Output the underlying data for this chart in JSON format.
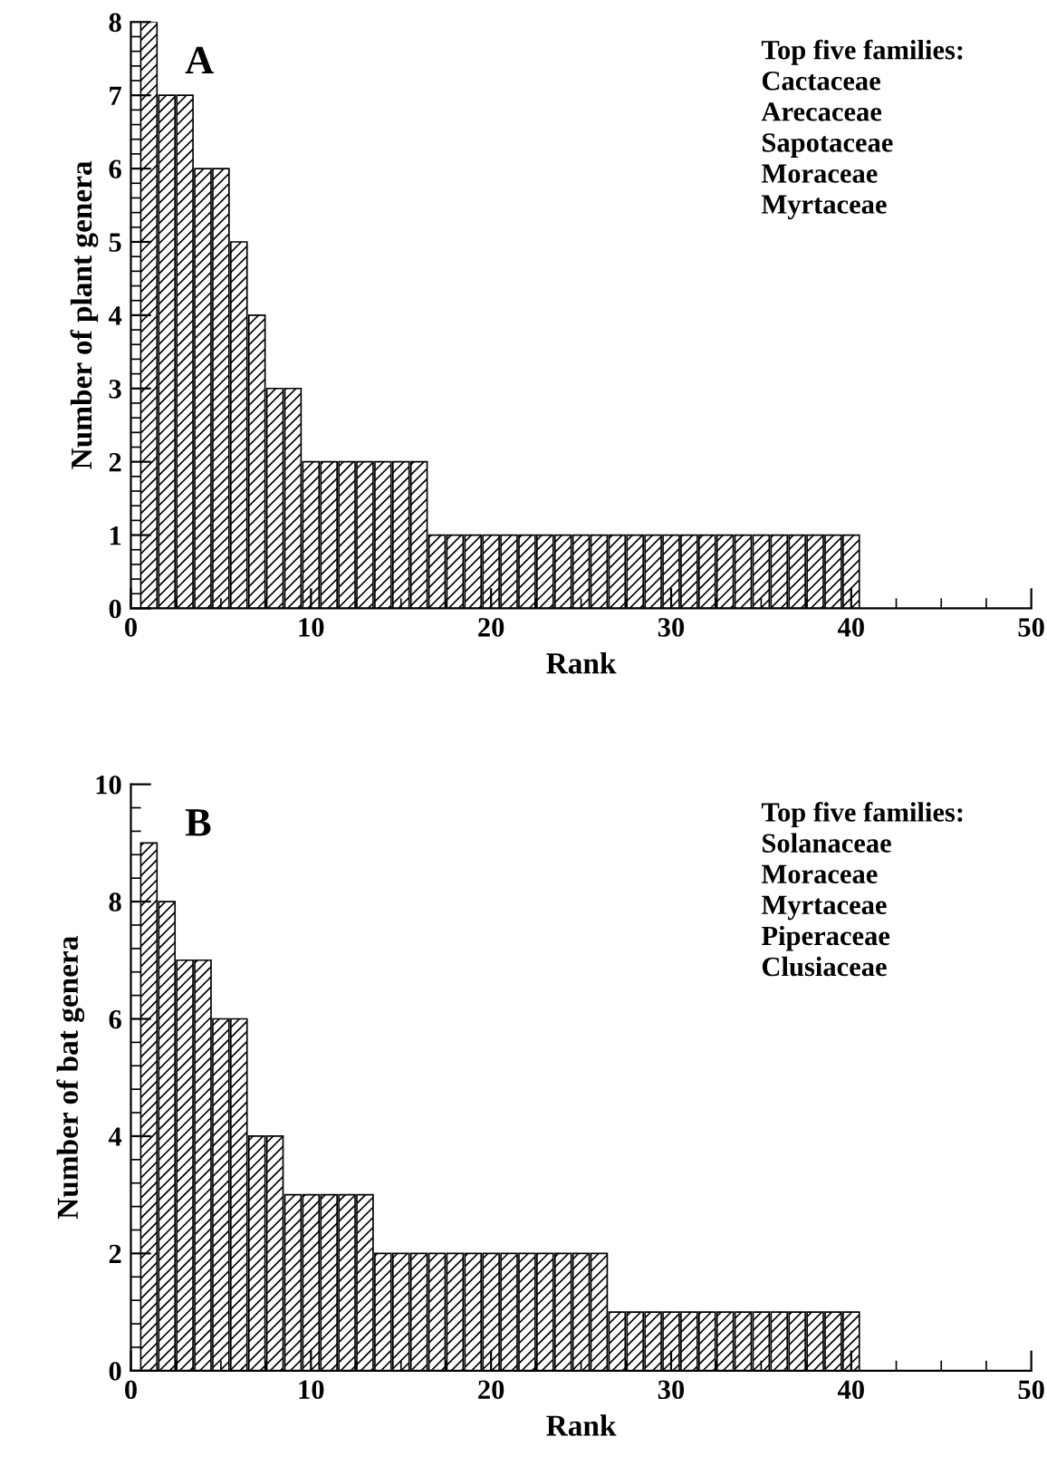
{
  "chart_data": [
    {
      "type": "bar",
      "title": "A",
      "xlabel": "Rank",
      "ylabel": "Number of plant genera",
      "x": [
        1,
        2,
        3,
        4,
        5,
        6,
        7,
        8,
        9,
        10,
        11,
        12,
        13,
        14,
        15,
        16,
        17,
        18,
        19,
        20,
        21,
        22,
        23,
        24,
        25,
        26,
        27,
        28,
        29,
        30,
        31,
        32,
        33,
        34,
        35,
        36,
        37,
        38,
        39,
        40
      ],
      "values": [
        8,
        7,
        7,
        6,
        6,
        5,
        4,
        3,
        3,
        2,
        2,
        2,
        2,
        2,
        2,
        2,
        1,
        1,
        1,
        1,
        1,
        1,
        1,
        1,
        1,
        1,
        1,
        1,
        1,
        1,
        1,
        1,
        1,
        1,
        1,
        1,
        1,
        1,
        1,
        1
      ],
      "color": "#000000",
      "xlim": [
        0,
        50
      ],
      "xticks": [
        0,
        10,
        20,
        30,
        40,
        50
      ],
      "ylim": [
        0,
        8
      ],
      "yticks": [
        0,
        1,
        2,
        3,
        4,
        5,
        6,
        7,
        8
      ],
      "grid": false,
      "annotations": [
        "Top five families:\nCactaceae\nArecaceae\nSapotaceae\nMoraceae\nMyrtaceae"
      ]
    },
    {
      "type": "bar",
      "title": "B",
      "xlabel": "Rank",
      "ylabel": "Number of bat genera",
      "x": [
        1,
        2,
        3,
        4,
        5,
        6,
        7,
        8,
        9,
        10,
        11,
        12,
        13,
        14,
        15,
        16,
        17,
        18,
        19,
        20,
        21,
        22,
        23,
        24,
        25,
        26,
        27,
        28,
        29,
        30,
        31,
        32,
        33,
        34,
        35,
        36,
        37,
        38,
        39,
        40
      ],
      "values": [
        9,
        8,
        7,
        7,
        6,
        6,
        4,
        4,
        3,
        3,
        3,
        3,
        3,
        2,
        2,
        2,
        2,
        2,
        2,
        2,
        2,
        2,
        2,
        2,
        2,
        2,
        1,
        1,
        1,
        1,
        1,
        1,
        1,
        1,
        1,
        1,
        1,
        1,
        1,
        1
      ],
      "color": "#000000",
      "xlim": [
        0,
        50
      ],
      "xticks": [
        0,
        10,
        20,
        30,
        40,
        50
      ],
      "ylim": [
        0,
        10
      ],
      "yticks": [
        0,
        2,
        4,
        6,
        8,
        10
      ],
      "grid": false,
      "annotations": [
        "Top five families:\nSolanaceae\nMoraceae\nMyrtaceae\nPiperaceae\nClusiaceae"
      ]
    }
  ]
}
